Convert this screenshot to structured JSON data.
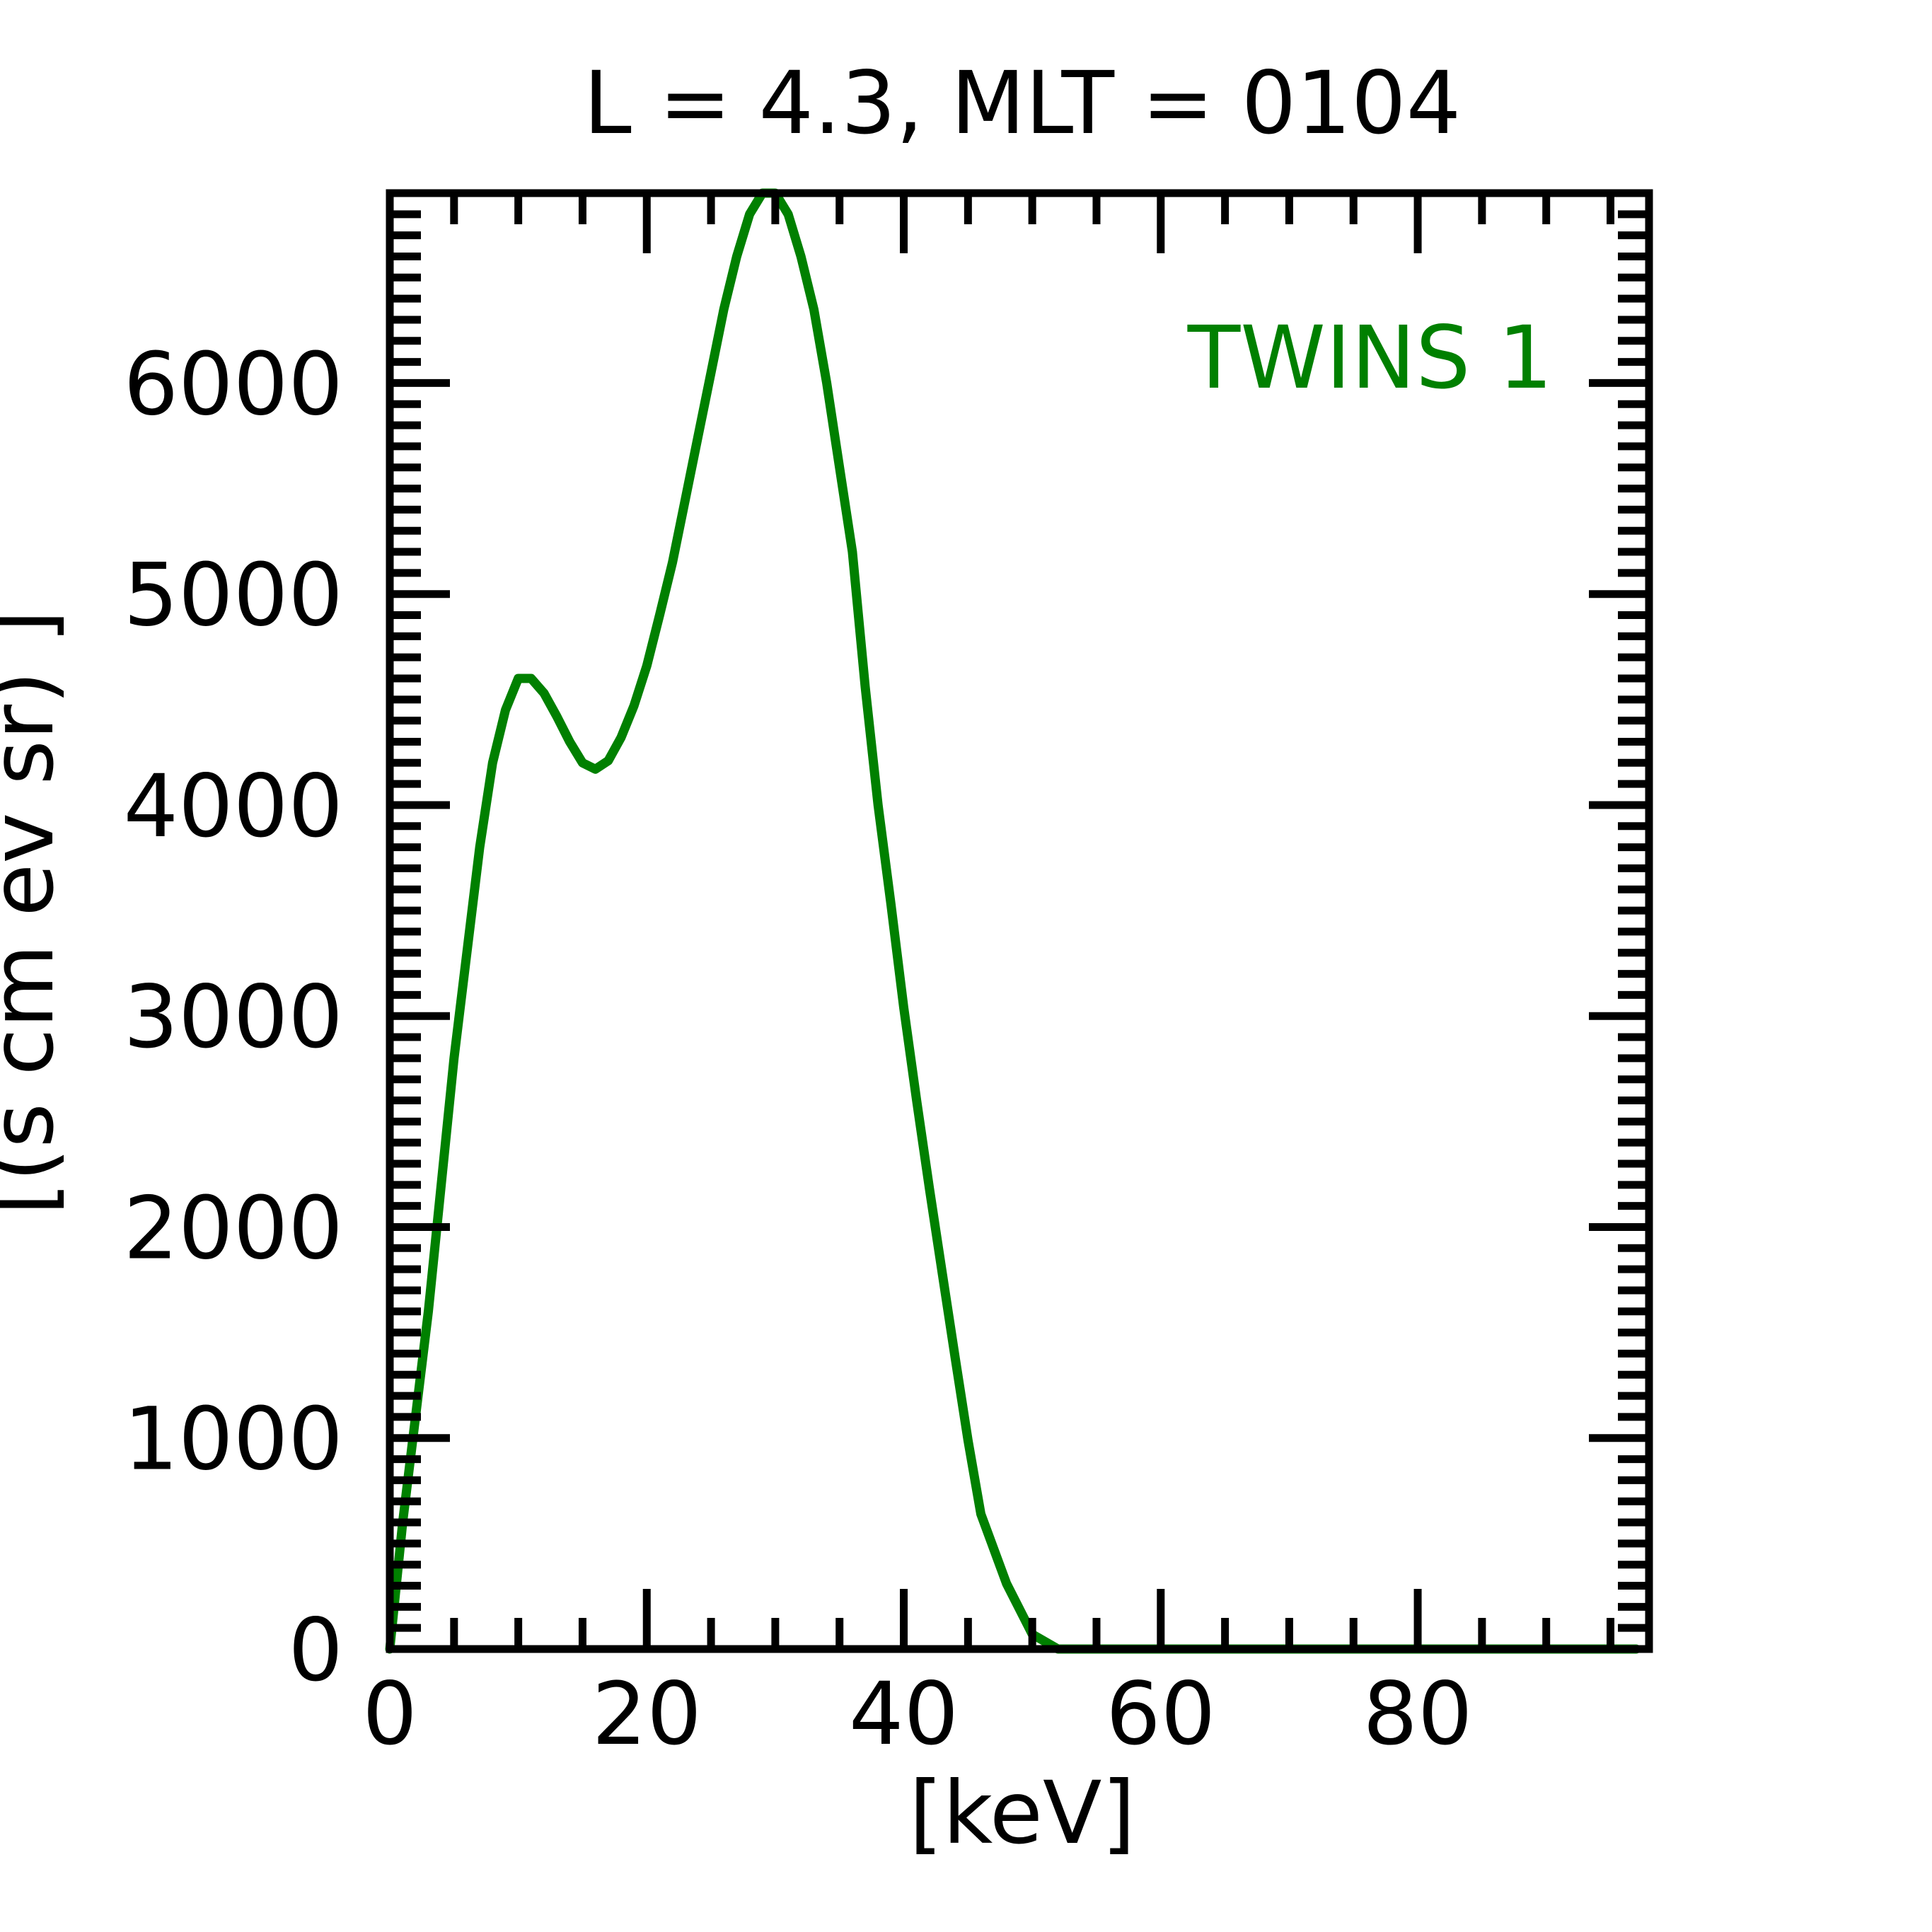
{
  "chart_data": {
    "type": "line",
    "title": "L =  4.3, MLT = 0104",
    "xlabel": "[keV]",
    "ylabel": "[(s cm ev sr) ]",
    "xlim": [
      0,
      98
    ],
    "ylim": [
      0,
      6900
    ],
    "xticks": [
      0,
      20,
      40,
      60,
      80
    ],
    "yticks": [
      0,
      1000,
      2000,
      3000,
      4000,
      5000,
      6000
    ],
    "x_minor_step": 5,
    "y_minor_step": 100,
    "ticks_on_all_sides": true,
    "grid": false,
    "legend_position": "top-right",
    "series": [
      {
        "name": "TWINS 1",
        "color": "#008000",
        "x": [
          0,
          1,
          3,
          5,
          7,
          8,
          9,
          10,
          11,
          12,
          13,
          14,
          15,
          16,
          17,
          18,
          19,
          20,
          21,
          22,
          23,
          24,
          25,
          26,
          27,
          28,
          29,
          30,
          31,
          32,
          33,
          34,
          35,
          36,
          37,
          38,
          39,
          40,
          41,
          42,
          43,
          44,
          45,
          46,
          48,
          50,
          52,
          55,
          58,
          61,
          64,
          67,
          70,
          73,
          76,
          79,
          82,
          85,
          88,
          91,
          94,
          97
        ],
        "y": [
          0,
          600,
          1600,
          2800,
          3800,
          4200,
          4450,
          4600,
          4600,
          4530,
          4420,
          4300,
          4200,
          4170,
          4210,
          4320,
          4470,
          4660,
          4900,
          5150,
          5450,
          5750,
          6050,
          6350,
          6600,
          6800,
          6900,
          6900,
          6800,
          6600,
          6350,
          6000,
          5600,
          5200,
          4560,
          4000,
          3530,
          3040,
          2600,
          2180,
          1780,
          1380,
          990,
          640,
          310,
          70,
          0,
          0,
          0,
          0,
          0,
          0,
          0,
          0,
          0,
          0,
          0,
          0,
          0,
          0,
          0,
          0
        ]
      }
    ]
  }
}
